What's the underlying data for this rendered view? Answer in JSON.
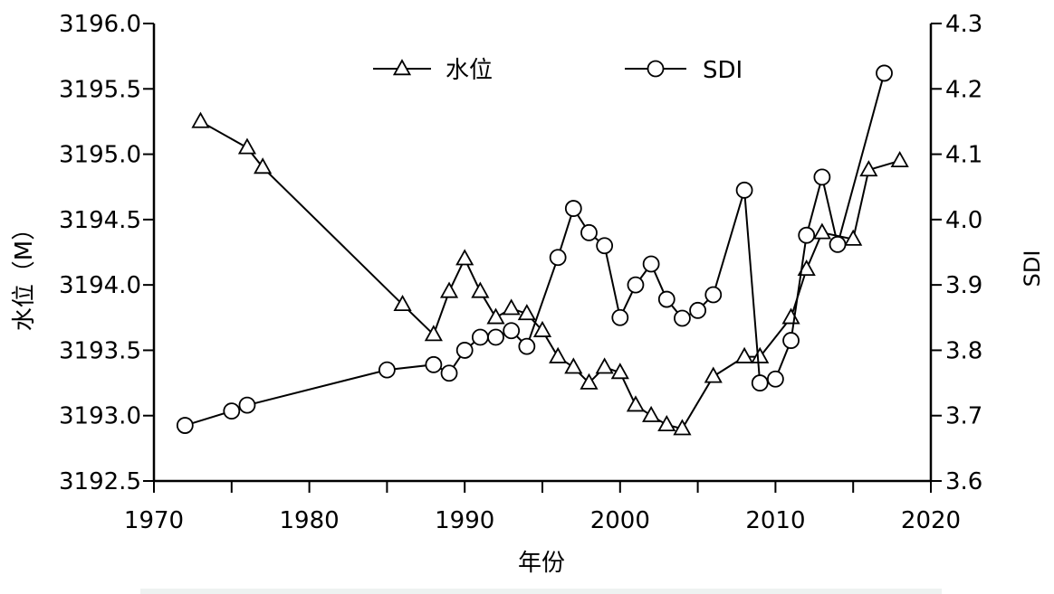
{
  "chart_data": {
    "type": "line",
    "title": "",
    "xlabel": "年份",
    "ylabel_left": "水位（M）",
    "ylabel_right": "SDI",
    "xlim": [
      1970,
      2020
    ],
    "ylim_left": [
      3192.5,
      3196.0
    ],
    "ylim_right": [
      3.6,
      4.3
    ],
    "x_ticks": [
      "1970",
      "1980",
      "1990",
      "2000",
      "2010",
      "2020"
    ],
    "y_left_ticks": [
      "3192.5",
      "3193.0",
      "3193.5",
      "3194.0",
      "3194.5",
      "3195.0",
      "3195.5",
      "3196.0"
    ],
    "y_right_ticks": [
      "3.6",
      "3.7",
      "3.8",
      "3.9",
      "4.0",
      "4.1",
      "4.2",
      "4.3"
    ],
    "grid": false,
    "legend_position": "top-center",
    "series": [
      {
        "name": "水位",
        "axis": "left",
        "marker": "triangle",
        "color": "#000000",
        "x": [
          1973,
          1976,
          1977,
          1986,
          1988,
          1989,
          1990,
          1991,
          1992,
          1993,
          1994,
          1995,
          1996,
          1997,
          1998,
          1999,
          2000,
          2001,
          2002,
          2003,
          2004,
          2006,
          2008,
          2009,
          2011,
          2012,
          2013,
          2015,
          2016,
          2018
        ],
        "y": [
          3195.25,
          3195.05,
          3194.9,
          3193.85,
          3193.62,
          3193.95,
          3194.2,
          3193.95,
          3193.75,
          3193.82,
          3193.78,
          3193.65,
          3193.45,
          3193.37,
          3193.25,
          3193.37,
          3193.33,
          3193.08,
          3193.0,
          3192.93,
          3192.9,
          3193.3,
          3193.45,
          3193.45,
          3193.75,
          3194.12,
          3194.4,
          3194.35,
          3194.88,
          3194.95
        ]
      },
      {
        "name": "SDI",
        "axis": "right",
        "marker": "circle",
        "color": "#000000",
        "x": [
          1972,
          1975,
          1976,
          1985,
          1988,
          1989,
          1990,
          1991,
          1992,
          1993,
          1994,
          1996,
          1997,
          1998,
          1999,
          2000,
          2001,
          2002,
          2003,
          2004,
          2005,
          2006,
          2008,
          2009,
          2010,
          2011,
          2012,
          2013,
          2014,
          2017
        ],
        "y": [
          3.685,
          3.707,
          3.716,
          3.77,
          3.778,
          3.765,
          3.8,
          3.82,
          3.82,
          3.83,
          3.806,
          3.942,
          4.017,
          3.98,
          3.96,
          3.85,
          3.9,
          3.932,
          3.878,
          3.849,
          3.861,
          3.885,
          4.045,
          3.75,
          3.756,
          3.815,
          3.976,
          4.065,
          3.962,
          4.224
        ]
      }
    ]
  }
}
